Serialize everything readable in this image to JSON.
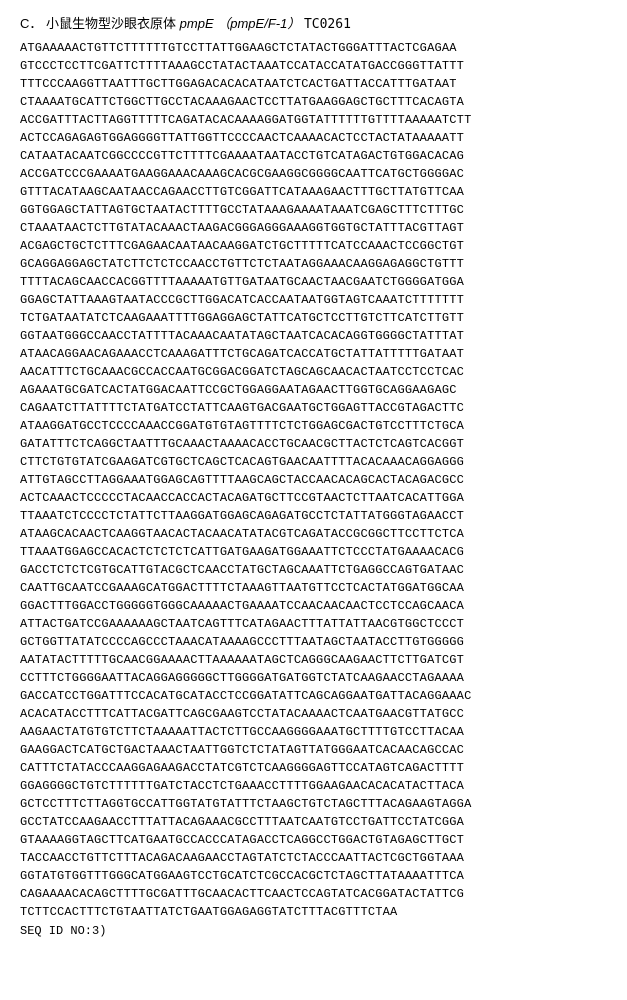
{
  "background_color": "#ffffff",
  "text_color": "#000000",
  "header": {
    "prefix": "C．",
    "description_cjk": "小鼠生物型沙眼衣原体",
    "gene": "pmpE",
    "alt": "（pmpE/F-1）",
    "tc": "TC0261"
  },
  "header_fontsize": 13,
  "sequence_fontsize": 12,
  "sequence": {
    "lines": [
      "ATGAAAAACTGTTCTTTTTTGTCCTTATTGGAAGCTCTATACTGGGATTTACTCGAGAA",
      "GTCCCTCCTTCGATTCTTTTAAAGCCTATACTAAATCCATACCATATGACCGGGTTATTT",
      "TTTCCCAAGGTTAATTTGCTTGGAGACACACATAATCTCACTGATTACCATTTGATAAT",
      "CTAAAATGCATTCTGGCTTGCCTACAAAGAACTCCTTATGAAGGAGCTGCTTTCACAGTA",
      "ACCGATTTACTTAGGTTTTTCAGATACACAAAAGGATGGTATTTTTTGTTTTAAAAATCTT",
      "ACTCCAGAGAGTGGAGGGGTTATTGGTTCCCCAACTCAAAACACTCCTACTATAAAAATT",
      "CATAATACAATCGGCCCCGTTCTTTTCGAAAATAATACCTGTCATAGACTGTGGACACAG",
      "ACCGATCCCGAAAATGAAGGAAACAAAGCACGCGAAGGCGGGGCAATTCATGCTGGGGAC",
      "GTTTACATAAGCAATAACCAGAACCTTGTCGGATTCATAAAGAACTTTGCTTATGTTCAA",
      "GGTGGAGCTATTAGTGCTAATACTTTTGCCTATAAAGAAAATAAATCGAGCTTTCTTTGC",
      "CTAAATAACTCTTGTATACAAACTAAGACGGGAGGGAAAGGTGGTGCTATTTACGTTAGT",
      "ACGAGCTGCTCTTTCGAGAACAATAACAAGGATCTGCTTTTTCATCCAAACTCCGGCTGT",
      "GCAGGAGGAGCTATCTTCTCTCCAACCTGTTCTCTAATAGGAAACAAGGAGAGGCTGTTT",
      "TTTTACAGCAACCACGGTTTTAAAAATGTTGATAATGCAACTAACGAATCTGGGGATGGA",
      "GGAGCTATTAAAGTAATACCCGCTTGGACATCACCAATAATGGTAGTCAAATCTTTTTTT",
      "TCTGATAATATCTCAAGAAATTTTGGAGGAGCTATTCATGCTCCTTGTCTTCATCTTGTT",
      "GGTAATGGGCCAACCTATTTTACAAACAATATAGCTAATCACACAGGTGGGGCTATTTAT",
      "ATAACAGGAACAGAAACCTCAAAGATTTCTGCAGATCACCATGCTATTATTTTTGATAAT",
      "AACATTTCTGCAAACGCCACCAATGCGGACGGATCTAGCAGCAACACTAATCCTCCTCAC",
      "AGAAATGCGATCACTATGGACAATTCCGCTGGAGGAATAGAACTTGGTGCAGGAAGAGC",
      "CAGAATCTTATTTTCTATGATCCTATTCAAGTGACGAATGCTGGAGTTACCGTAGACTTC",
      "ATAAGGATGCCTCCCCAAACCGGATGTGTAGTTTTCTCTGGAGCGACTGTCCTTTCTGCA",
      "GATATTTCTCAGGCTAATTTGCAAACTAAAACACCTGCAACGCTTACTCTCAGTCACGGT",
      "CTTCTGTGTATCGAAGATCGTGCTCAGCTCACAGTGAACAATTTTACACAAACAGGAGGG",
      "ATTGTAGCCTTAGGAAATGGAGCAGTTTTAAGCAGCTACCAACACAGCACTACAGACGCC",
      "ACTCAAACTCCCCCTACAACCACCACTACAGATGCTTCCGTAACTCTTAATCACATTGGA",
      "TTAAATCTCCCCTCTATTCTTAAGGATGGAGCAGAGATGCCTCTATTATGGGTAGAACCT",
      "ATAAGCACAACTCAAGGTAACACTACAACATATACGTCAGATACCGCGGCTTCCTTCTCA",
      "TTAAATGGAGCCACACTCTCTCTCATTGATGAAGATGGAAATTCTCCCTATGAAAACACG",
      "GACCTCTCTCGTGCATTGTACGCTCAACCTATGCTAGCAAATTCTGAGGCCAGTGATAAC",
      "CAATTGCAATCCGAAAGCATGGACTTTTCTAAAGTTAATGTTCCTCACTATGGATGGCAA",
      "GGACTTTGGACCTGGGGGTGGGCAAAAACTGAAAATCCAACAACAACTCCTCCAGCAACA",
      "ATTACTGATCCGAAAAAAGCTAATCAGTTTCATAGAACTTTATTATTAACGTGGCTCCCT",
      "GCTGGTTATATCCCCAGCCCTAAACATAAAAGCCCTTTAATAGCTAATACCTTGTGGGGG",
      "AATATACTTTTTGCAACGGAAAACTTAAAAAATAGCTCAGGGCAAGAACTTCTTGATCGT",
      "CCTTTCTGGGGAATTACAGGAGGGGGCTTGGGGATGATGGTCTATCAAGAACCTAGAAAA",
      "GACCATCCTGGATTTCCACATGCATACCTCCGGATATTCAGCAGGAATGATTACAGGAAAC",
      "ACACATACCTTTCATTACGATTCAGCGAAGTCCTATACAAAACTCAATGAACGTTATGCC",
      "AAGAACTATGTGTCTTCTAAAAATTACTCTTGCCAAGGGGAAATGCTTTTGTCCTTACAA",
      "GAAGGACTCATGCTGACTAAACTAATTGGTCTCTATAGTTATGGGAATCACAACAGCCAC",
      "CATTTCTATACCCAAGGAGAAGACCTATCGTCTCAAGGGGAGTTCCATAGTCAGACTTTT",
      "GGAGGGGCTGTCTTTTTTGATCTACCTCTGAAACCTTTTGGAAGAACACACATACTTACA",
      "GCTCCTTTCTTAGGTGCCATTGGTATGTATTTCTAAGCTGTCTAGCTTTACAGAAGTAGGA",
      "GCCTATCCAAGAACCTTTATTACAGAAACGCCTTTAATCAATGTCCTGATTCCTATCGGA",
      "GTAAAAGGTAGCTTCATGAATGCCACCCATAGACCTCAGGCCTGGACTGTAGAGCTTGCT",
      "TACCAACCTGTTCTTTACAGACAAGAACCTAGTATCTCTACCCAATTACTCGCTGGTAAA",
      "GGTATGTGGTTTGGGCATGGAAGTCCTGCATCTCGCCACGCTCTAGCTTATAAAATTTCA",
      "CAGAAAACACAGCTTTTGCGATTTGCAACACTTCAACTCCAGTATCACGGATACTATTCG",
      "TCTTCCACTTTCTGTAATTATCTGAATGGAGAGGTATCTTTACGTTTCTAA"
    ]
  },
  "footer": {
    "label": "SEQ ID NO:3)"
  }
}
